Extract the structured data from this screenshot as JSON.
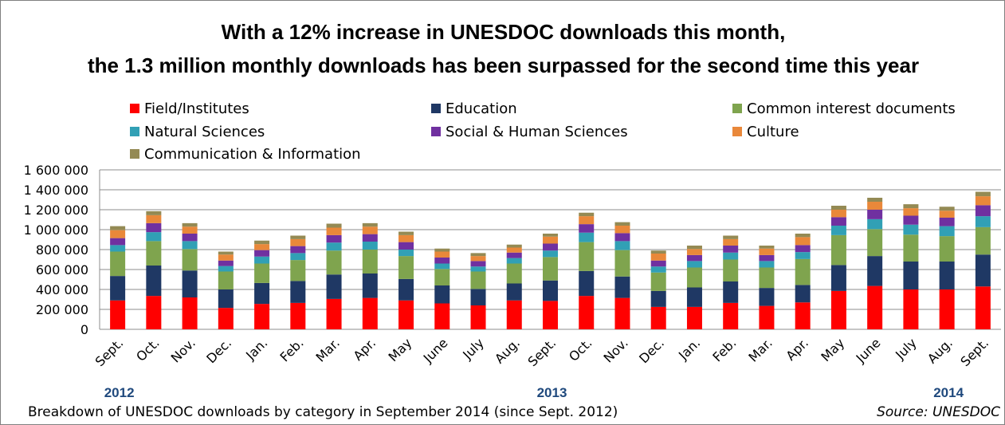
{
  "chart_data": {
    "type": "bar",
    "stacked": true,
    "title": "With a 12% increase in UNESDOC downloads this month,",
    "subtitle": "the 1.3 million monthly downloads has been surpassed for the second time this year",
    "categories": [
      "Sept.",
      "Oct.",
      "Nov.",
      "Dec.",
      "Jan.",
      "Feb.",
      "Mar.",
      "Apr.",
      "May",
      "June",
      "July",
      "Aug.",
      "Sept.",
      "Oct.",
      "Nov.",
      "Dec.",
      "Jan.",
      "Feb.",
      "Mar.",
      "Apr.",
      "May",
      "June",
      "July",
      "Aug.",
      "Sept."
    ],
    "year_labels": [
      {
        "text": "2012",
        "category_index": 0
      },
      {
        "text": "2013",
        "category_index": 12
      },
      {
        "text": "2014",
        "category_index": 23
      }
    ],
    "ylim": [
      0,
      1600000
    ],
    "yticks": [
      0,
      200000,
      400000,
      600000,
      800000,
      1000000,
      1200000,
      1400000,
      1600000
    ],
    "ytick_labels": [
      "0",
      "200 000",
      "400 000",
      "600 000",
      "800 000",
      "1 000 000",
      "1 200 000",
      "1 400 000",
      "1 600 000"
    ],
    "grid": true,
    "legend_position": "top",
    "series": [
      {
        "name": "Field/Institutes",
        "color": "#ff0000",
        "values": [
          290000,
          335000,
          320000,
          215000,
          255000,
          265000,
          305000,
          315000,
          290000,
          260000,
          240000,
          290000,
          285000,
          335000,
          315000,
          225000,
          225000,
          265000,
          235000,
          270000,
          385000,
          435000,
          400000,
          400000,
          430000
        ]
      },
      {
        "name": "Education",
        "color": "#1f3864",
        "values": [
          245000,
          305000,
          270000,
          185000,
          210000,
          220000,
          245000,
          245000,
          215000,
          180000,
          165000,
          170000,
          205000,
          250000,
          215000,
          160000,
          195000,
          215000,
          180000,
          175000,
          260000,
          300000,
          280000,
          280000,
          320000
        ]
      },
      {
        "name": "Common interest documents",
        "color": "#7fa44e",
        "values": [
          245000,
          245000,
          215000,
          180000,
          195000,
          210000,
          240000,
          240000,
          230000,
          165000,
          175000,
          200000,
          235000,
          290000,
          265000,
          185000,
          200000,
          220000,
          205000,
          260000,
          300000,
          270000,
          270000,
          255000,
          275000
        ]
      },
      {
        "name": "Natural Sciences",
        "color": "#31a0b5",
        "values": [
          65000,
          90000,
          80000,
          55000,
          70000,
          70000,
          80000,
          80000,
          65000,
          55000,
          50000,
          55000,
          65000,
          95000,
          90000,
          60000,
          65000,
          70000,
          65000,
          70000,
          95000,
          100000,
          100000,
          100000,
          110000
        ]
      },
      {
        "name": "Social & Human Sciences",
        "color": "#7030a0",
        "values": [
          70000,
          90000,
          75000,
          55000,
          65000,
          70000,
          75000,
          75000,
          75000,
          60000,
          55000,
          55000,
          70000,
          85000,
          80000,
          60000,
          60000,
          70000,
          60000,
          70000,
          85000,
          95000,
          90000,
          85000,
          110000
        ]
      },
      {
        "name": "Culture",
        "color": "#e9883a",
        "values": [
          80000,
          80000,
          70000,
          60000,
          60000,
          70000,
          75000,
          75000,
          70000,
          60000,
          50000,
          50000,
          70000,
          80000,
          75000,
          70000,
          60000,
          65000,
          65000,
          80000,
          75000,
          80000,
          75000,
          70000,
          90000
        ]
      },
      {
        "name": "Communication & Information",
        "color": "#948a54",
        "values": [
          40000,
          40000,
          35000,
          30000,
          35000,
          35000,
          40000,
          35000,
          35000,
          30000,
          30000,
          30000,
          30000,
          35000,
          35000,
          30000,
          35000,
          35000,
          30000,
          35000,
          40000,
          40000,
          40000,
          40000,
          45000
        ]
      }
    ]
  },
  "footnote": "Breakdown of UNESDOC downloads by category in September 2014 (since Sept. 2012)",
  "source": "Source: UNESDOC"
}
